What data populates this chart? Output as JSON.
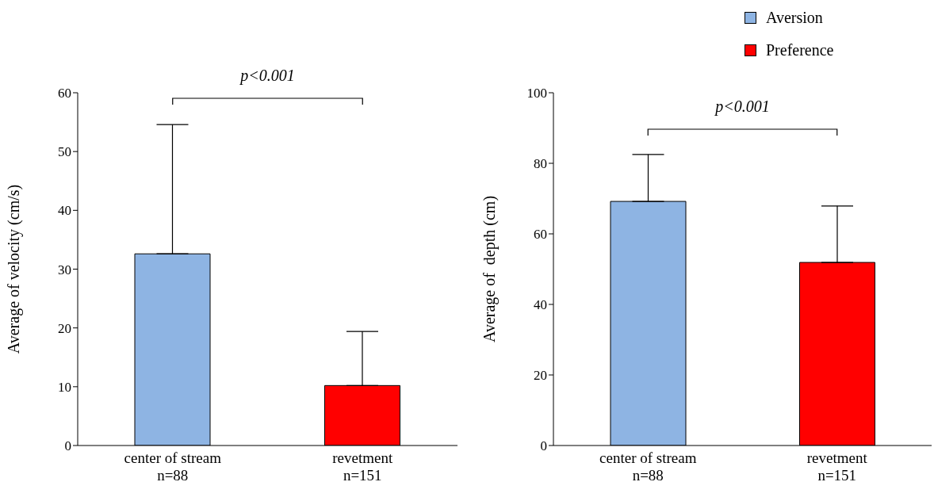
{
  "chart_data": [
    {
      "type": "bar",
      "ylabel": "Average of velocity (cm/s)",
      "categories": [
        "center of stream\nn=88",
        "revetment\nn=151"
      ],
      "stacked": true,
      "series": [
        {
          "color": "#8eb4e3",
          "values": [
            32.6,
            null
          ],
          "errors": [
            [
              32.6,
              54.6
            ],
            null
          ]
        },
        {
          "color": "#ff0000",
          "values": [
            null,
            10.2
          ],
          "errors": [
            null,
            [
              10.2,
              19.4
            ]
          ]
        }
      ],
      "ylim": [
        0,
        60
      ],
      "yticks": [
        0,
        10,
        20,
        30,
        40,
        50,
        60
      ],
      "annotations": [
        "p<0.001"
      ]
    },
    {
      "type": "bar",
      "ylabel": "Average of  depth (cm)",
      "categories": [
        "center of stream\nn=88",
        "revetment\nn=151"
      ],
      "stacked": true,
      "legend": "top right",
      "series": [
        {
          "name": "Aversion",
          "color": "#8eb4e3",
          "values": [
            69.2,
            null
          ],
          "errors": [
            [
              69.2,
              82.5
            ],
            null
          ]
        },
        {
          "name": "Preference",
          "color": "#ff0000",
          "values": [
            null,
            51.9
          ],
          "errors": [
            null,
            [
              51.9,
              67.9
            ]
          ]
        }
      ],
      "ylim": [
        0,
        100
      ],
      "yticks": [
        0,
        20,
        40,
        60,
        80,
        100
      ],
      "annotations": [
        "p<0.001"
      ]
    }
  ]
}
